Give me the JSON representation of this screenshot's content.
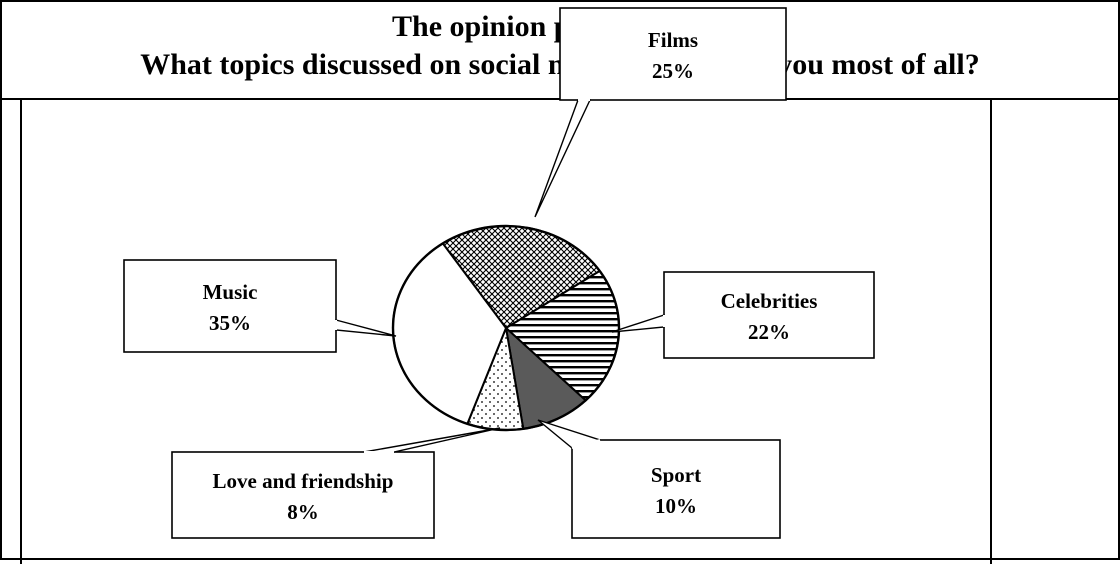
{
  "header": {
    "line1": "The opinion poll question:",
    "line2": "What topics discussed on social networks interest you most of all?"
  },
  "chart_data": {
    "type": "pie",
    "title": "The opinion poll question: What topics discussed on social networks interest you most of all?",
    "unit": "%",
    "slices": [
      {
        "label": "Films",
        "value": 25,
        "display": "25%",
        "pattern": "crosshatch"
      },
      {
        "label": "Celebrities",
        "value": 22,
        "display": "22%",
        "pattern": "horizontal-lines"
      },
      {
        "label": "Sport",
        "value": 10,
        "display": "10%",
        "pattern": "solid-dark"
      },
      {
        "label": "Love and friendship",
        "value": 8,
        "display": "8%",
        "pattern": "dots"
      },
      {
        "label": "Music",
        "value": 35,
        "display": "35%",
        "pattern": "white"
      }
    ],
    "colors": {
      "outline": "#000000",
      "dark_fill": "#5a5a5a",
      "background": "#ffffff"
    }
  }
}
